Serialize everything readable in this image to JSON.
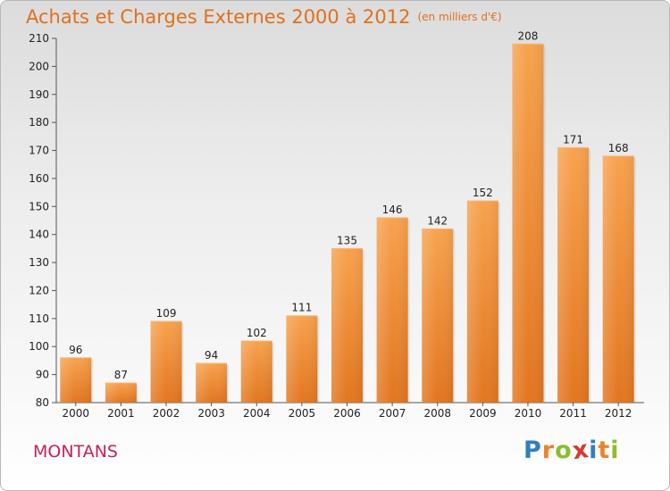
{
  "header": {
    "title": "Achats et Charges Externes 2000 à 2012",
    "unit": "(en milliers d'€)"
  },
  "footer": {
    "city": "MONTANS",
    "logo_letters": [
      "P",
      "r",
      "o",
      "x",
      "i",
      "t",
      "i"
    ],
    "logo_colors": [
      "#2f7fc1",
      "#e8852c",
      "#8bbd2e",
      "#d63a2f",
      "#2f7fc1",
      "#e8852c",
      "#8bbd2e"
    ]
  },
  "chart_data": {
    "type": "bar",
    "title": "Achats et Charges Externes 2000 à 2012",
    "categories": [
      "2000",
      "2001",
      "2002",
      "2003",
      "2004",
      "2005",
      "2006",
      "2007",
      "2008",
      "2009",
      "2010",
      "2011",
      "2012"
    ],
    "values": [
      96,
      87,
      109,
      94,
      102,
      111,
      135,
      146,
      142,
      152,
      208,
      171,
      168
    ],
    "ylim": [
      80,
      210
    ],
    "yticks": [
      80,
      90,
      100,
      110,
      120,
      130,
      140,
      150,
      160,
      170,
      180,
      190,
      200,
      210
    ],
    "grid": false,
    "bar_color": "#f0923a"
  }
}
